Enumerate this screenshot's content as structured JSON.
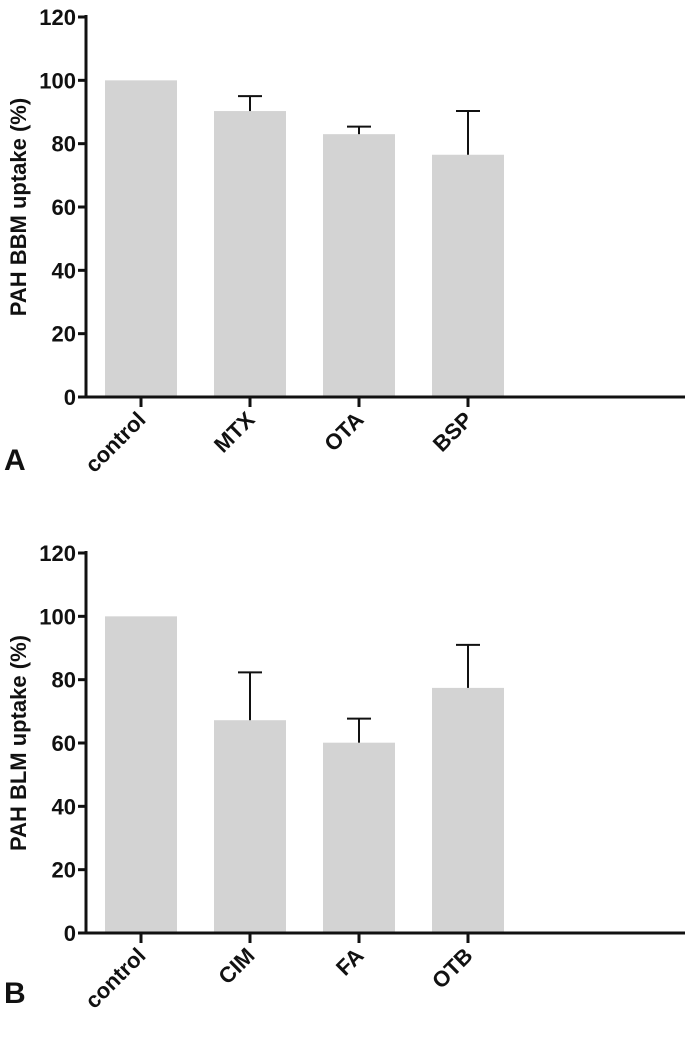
{
  "chart_data": [
    {
      "type": "bar",
      "panel_label": "A",
      "ylabel": "PAH BBM uptake (%)",
      "xlabel": "",
      "categories": [
        "control",
        "MTX",
        "OTA",
        "BSP"
      ],
      "values": [
        100,
        90.3,
        83,
        76.5
      ],
      "error_upper": [
        null,
        95,
        85.4,
        90.3
      ],
      "ylim": [
        0,
        120
      ],
      "yticks": [
        "0",
        "20",
        "40",
        "60",
        "80",
        "100",
        "120"
      ],
      "bar_color": "#d3d3d3",
      "grid": false
    },
    {
      "type": "bar",
      "panel_label": "B",
      "ylabel": "PAH BLM uptake (%)",
      "xlabel": "",
      "categories": [
        "control",
        "CIM",
        "FA",
        "OTB"
      ],
      "values": [
        100,
        67.2,
        60.1,
        77.4
      ],
      "error_upper": [
        null,
        82.3,
        67.7,
        91
      ],
      "ylim": [
        0,
        120
      ],
      "yticks": [
        "0",
        "20",
        "40",
        "60",
        "80",
        "100",
        "120"
      ],
      "bar_color": "#d3d3d3",
      "grid": false
    }
  ]
}
